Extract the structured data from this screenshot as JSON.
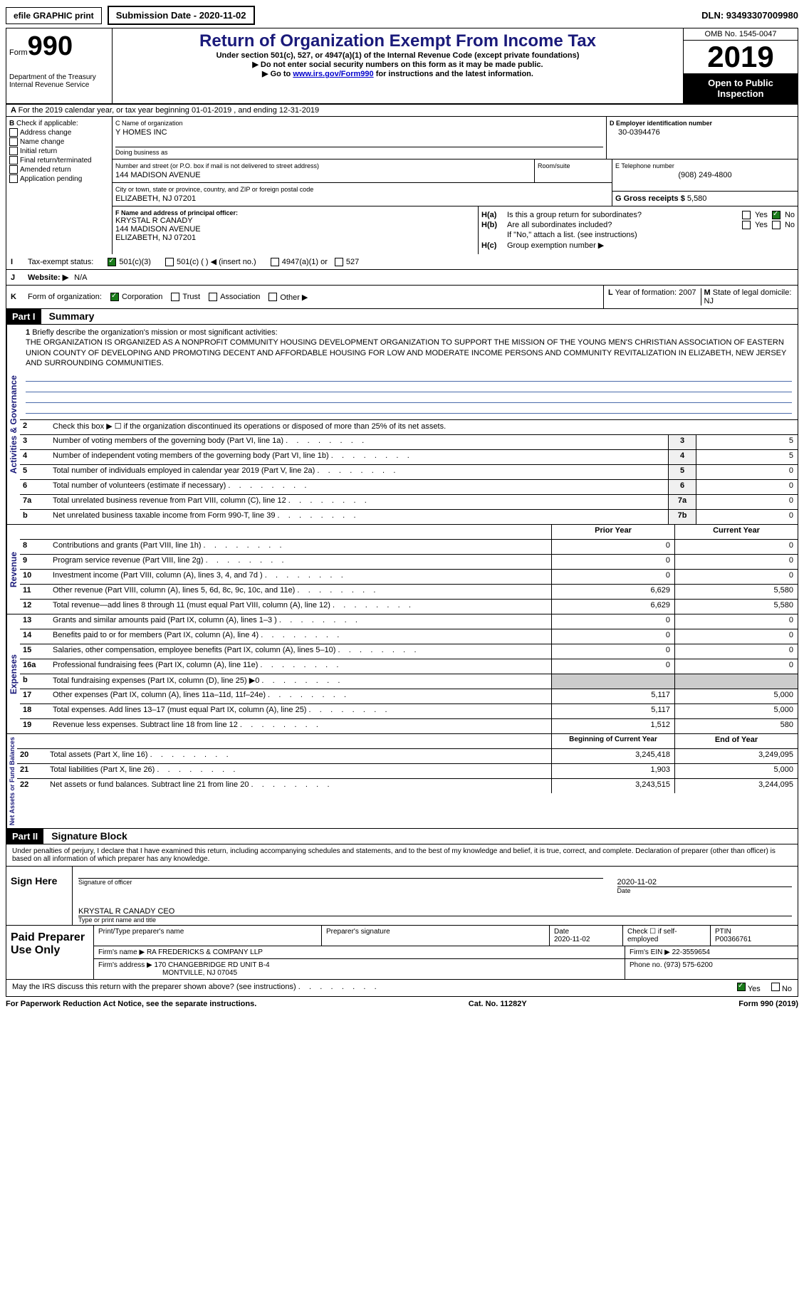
{
  "topbar": {
    "efile": "efile GRAPHIC print",
    "submission": "Submission Date - 2020-11-02",
    "dln": "DLN: 93493307009980"
  },
  "header": {
    "form_label": "Form",
    "form_number": "990",
    "dept": "Department of the Treasury\nInternal Revenue Service",
    "title": "Return of Organization Exempt From Income Tax",
    "subtitle": "Under section 501(c), 527, or 4947(a)(1) of the Internal Revenue Code (except private foundations)",
    "warn": "Do not enter social security numbers on this form as it may be made public.",
    "goto": "Go to ",
    "goto_link": "www.irs.gov/Form990",
    "goto_after": " for instructions and the latest information.",
    "omb": "OMB No. 1545-0047",
    "year": "2019",
    "inspection": "Open to Public Inspection"
  },
  "row_a": "For the 2019 calendar year, or tax year beginning 01-01-2019    , and ending 12-31-2019",
  "section_b": {
    "title": "Check if applicable:",
    "items": [
      "Address change",
      "Name change",
      "Initial return",
      "Final return/terminated",
      "Amended return",
      "Application pending"
    ]
  },
  "section_c": {
    "name_label": "C Name of organization",
    "name": "Y HOMES INC",
    "dba_label": "Doing business as",
    "addr_label": "Number and street (or P.O. box if mail is not delivered to street address)",
    "addr": "144 MADISON AVENUE",
    "room_label": "Room/suite",
    "city_label": "City or town, state or province, country, and ZIP or foreign postal code",
    "city": "ELIZABETH, NJ  07201"
  },
  "section_d": {
    "label": "D Employer identification number",
    "value": "30-0394476"
  },
  "section_e": {
    "label": "E Telephone number",
    "value": "(908) 249-4800"
  },
  "section_g": {
    "label": "G Gross receipts $",
    "value": "5,580"
  },
  "section_f": {
    "label": "F  Name and address of principal officer:",
    "name": "KRYSTAL R CANADY",
    "addr1": "144 MADISON AVENUE",
    "addr2": "ELIZABETH, NJ  07201"
  },
  "section_h": {
    "ha_label": "H(a)",
    "ha_text": "Is this a group return for subordinates?",
    "hb_label": "H(b)",
    "hb_text": "Are all subordinates included?",
    "hb_note": "If \"No,\" attach a list. (see instructions)",
    "hc_label": "H(c)",
    "hc_text": "Group exemption number ▶",
    "yes": "Yes",
    "no": "No"
  },
  "row_i": {
    "label": "I",
    "text": "Tax-exempt status:",
    "opt1": "501(c)(3)",
    "opt2": "501(c) (  ) ◀ (insert no.)",
    "opt3": "4947(a)(1) or",
    "opt4": "527"
  },
  "row_j": {
    "label": "J",
    "text": "Website: ▶",
    "value": "N/A"
  },
  "row_k": {
    "label": "K",
    "text": "Form of organization:",
    "opts": [
      "Corporation",
      "Trust",
      "Association",
      "Other ▶"
    ]
  },
  "row_l": {
    "label": "L",
    "text": "Year of formation:",
    "value": "2007"
  },
  "row_m": {
    "label": "M",
    "text": "State of legal domicile:",
    "value": "NJ"
  },
  "part1": {
    "header": "Part I",
    "title": "Summary",
    "line1_label": "1",
    "line1_text": "Briefly describe the organization's mission or most significant activities:",
    "mission": "THE ORGANIZATION IS ORGANIZED AS A NONPROFIT COMMUNITY HOUSING DEVELOPMENT ORGANIZATION TO SUPPORT THE MISSION OF THE YOUNG MEN'S CHRISTIAN ASSOCIATION OF EASTERN UNION COUNTY OF DEVELOPING AND PROMOTING DECENT AND AFFORDABLE HOUSING FOR LOW AND MODERATE INCOME PERSONS AND COMMUNITY REVITALIZATION IN ELIZABETH, NEW JERSEY AND SURROUNDING COMMUNITIES.",
    "line2_num": "2",
    "line2": "Check this box ▶ ☐ if the organization discontinued its operations or disposed of more than 25% of its net assets.",
    "side_gov": "Activities & Governance",
    "side_rev": "Revenue",
    "side_exp": "Expenses",
    "side_net": "Net Assets or Fund Balances",
    "rows_gov": [
      {
        "num": "3",
        "desc": "Number of voting members of the governing body (Part VI, line 1a)",
        "key": "3",
        "val": "5"
      },
      {
        "num": "4",
        "desc": "Number of independent voting members of the governing body (Part VI, line 1b)",
        "key": "4",
        "val": "5"
      },
      {
        "num": "5",
        "desc": "Total number of individuals employed in calendar year 2019 (Part V, line 2a)",
        "key": "5",
        "val": "0"
      },
      {
        "num": "6",
        "desc": "Total number of volunteers (estimate if necessary)",
        "key": "6",
        "val": "0"
      },
      {
        "num": "7a",
        "desc": "Total unrelated business revenue from Part VIII, column (C), line 12",
        "key": "7a",
        "val": "0"
      },
      {
        "num": "b",
        "desc": "Net unrelated business taxable income from Form 990-T, line 39",
        "key": "7b",
        "val": "0"
      }
    ],
    "prior_year": "Prior Year",
    "current_year": "Current Year",
    "rows_rev": [
      {
        "num": "8",
        "desc": "Contributions and grants (Part VIII, line 1h)",
        "prior": "0",
        "curr": "0"
      },
      {
        "num": "9",
        "desc": "Program service revenue (Part VIII, line 2g)",
        "prior": "0",
        "curr": "0"
      },
      {
        "num": "10",
        "desc": "Investment income (Part VIII, column (A), lines 3, 4, and 7d )",
        "prior": "0",
        "curr": "0"
      },
      {
        "num": "11",
        "desc": "Other revenue (Part VIII, column (A), lines 5, 6d, 8c, 9c, 10c, and 11e)",
        "prior": "6,629",
        "curr": "5,580"
      },
      {
        "num": "12",
        "desc": "Total revenue—add lines 8 through 11 (must equal Part VIII, column (A), line 12)",
        "prior": "6,629",
        "curr": "5,580"
      }
    ],
    "rows_exp": [
      {
        "num": "13",
        "desc": "Grants and similar amounts paid (Part IX, column (A), lines 1–3 )",
        "prior": "0",
        "curr": "0"
      },
      {
        "num": "14",
        "desc": "Benefits paid to or for members (Part IX, column (A), line 4)",
        "prior": "0",
        "curr": "0"
      },
      {
        "num": "15",
        "desc": "Salaries, other compensation, employee benefits (Part IX, column (A), lines 5–10)",
        "prior": "0",
        "curr": "0"
      },
      {
        "num": "16a",
        "desc": "Professional fundraising fees (Part IX, column (A), line 11e)",
        "prior": "0",
        "curr": "0"
      },
      {
        "num": "b",
        "desc": "Total fundraising expenses (Part IX, column (D), line 25) ▶0",
        "prior": "",
        "curr": ""
      },
      {
        "num": "17",
        "desc": "Other expenses (Part IX, column (A), lines 11a–11d, 11f–24e)",
        "prior": "5,117",
        "curr": "5,000"
      },
      {
        "num": "18",
        "desc": "Total expenses. Add lines 13–17 (must equal Part IX, column (A), line 25)",
        "prior": "5,117",
        "curr": "5,000"
      },
      {
        "num": "19",
        "desc": "Revenue less expenses. Subtract line 18 from line 12",
        "prior": "1,512",
        "curr": "580"
      }
    ],
    "beg_year": "Beginning of Current Year",
    "end_year": "End of Year",
    "rows_net": [
      {
        "num": "20",
        "desc": "Total assets (Part X, line 16)",
        "prior": "3,245,418",
        "curr": "3,249,095"
      },
      {
        "num": "21",
        "desc": "Total liabilities (Part X, line 26)",
        "prior": "1,903",
        "curr": "5,000"
      },
      {
        "num": "22",
        "desc": "Net assets or fund balances. Subtract line 21 from line 20",
        "prior": "3,243,515",
        "curr": "3,244,095"
      }
    ]
  },
  "part2": {
    "header": "Part II",
    "title": "Signature Block",
    "declaration": "Under penalties of perjury, I declare that I have examined this return, including accompanying schedules and statements, and to the best of my knowledge and belief, it is true, correct, and complete. Declaration of preparer (other than officer) is based on all information of which preparer has any knowledge.",
    "sign_here": "Sign Here",
    "sig_officer": "Signature of officer",
    "sig_date": "Date",
    "date_val": "2020-11-02",
    "officer_name": "KRYSTAL R CANADY CEO",
    "type_name": "Type or print name and title",
    "paid_prep": "Paid Preparer Use Only",
    "print_name": "Print/Type preparer's name",
    "prep_sig": "Preparer's signature",
    "prep_date": "Date",
    "prep_date_val": "2020-11-02",
    "check_self": "Check ☐ if self-employed",
    "ptin": "PTIN",
    "ptin_val": "P00366761",
    "firm_name_label": "Firm's name    ▶",
    "firm_name": "RA FREDERICKS & COMPANY LLP",
    "firm_ein_label": "Firm's EIN ▶",
    "firm_ein": "22-3559654",
    "firm_addr_label": "Firm's address ▶",
    "firm_addr1": "170 CHANGEBRIDGE RD UNIT B-4",
    "firm_addr2": "MONTVILLE, NJ  07045",
    "phone_label": "Phone no.",
    "phone": "(973) 575-6200",
    "discuss": "May the IRS discuss this return with the preparer shown above? (see instructions)",
    "yes": "Yes",
    "no": "No"
  },
  "footer": {
    "notice": "For Paperwork Reduction Act Notice, see the separate instructions.",
    "cat": "Cat. No. 11282Y",
    "form": "Form 990 (2019)"
  }
}
